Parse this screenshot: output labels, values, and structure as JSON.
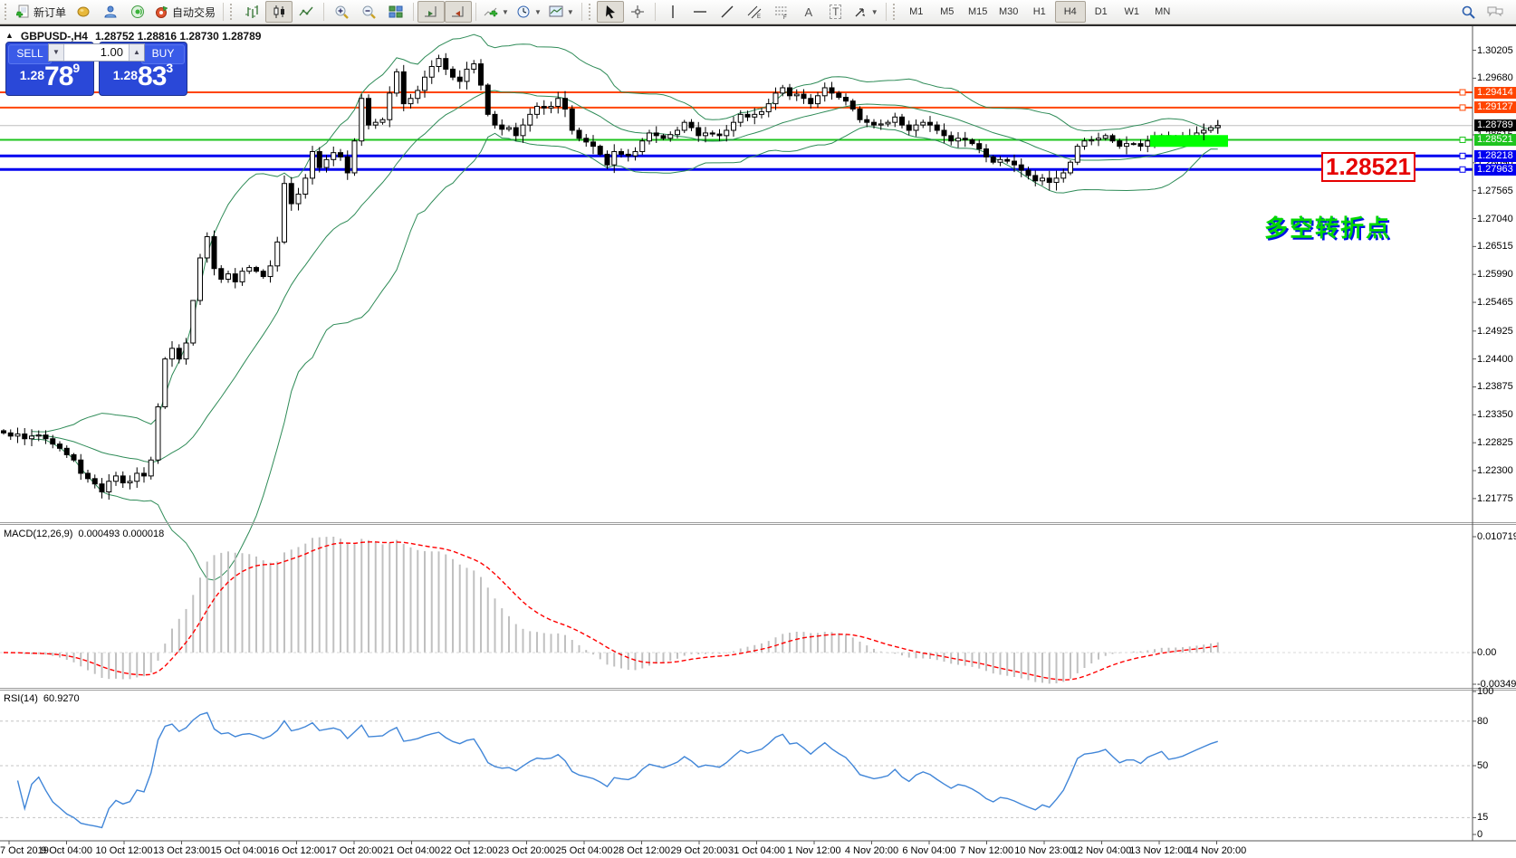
{
  "toolbar": {
    "new_order_label": "新订单",
    "autotrading_label": "自动交易",
    "text_tool_label": "A",
    "textlabel_tool_label": "T",
    "timeframes": [
      "M1",
      "M5",
      "M15",
      "M30",
      "H1",
      "H4",
      "D1",
      "W1",
      "MN"
    ],
    "active_timeframe": "H4"
  },
  "header": {
    "collapse_arrow": "▲",
    "symbol": "GBPUSD-,H4",
    "ohlc": "1.28752 1.28816 1.28730 1.28789"
  },
  "one_click": {
    "sell_label": "SELL",
    "buy_label": "BUY",
    "volume": "1.00",
    "sell_price_small": "1.28",
    "sell_price_big": "78",
    "sell_price_sup": "9",
    "buy_price_small": "1.28",
    "buy_price_big": "83",
    "buy_price_sup": "3"
  },
  "price_axis": {
    "ticks": [
      {
        "text": "1.30205",
        "price": 1.30205
      },
      {
        "text": "1.29680",
        "price": 1.2968
      },
      {
        "text": "1.28615",
        "price": 1.28615
      },
      {
        "text": "1.28090",
        "price": 1.2809
      },
      {
        "text": "1.27565",
        "price": 1.27565
      },
      {
        "text": "1.27040",
        "price": 1.2704
      },
      {
        "text": "1.26515",
        "price": 1.26515
      },
      {
        "text": "1.25990",
        "price": 1.2599
      },
      {
        "text": "1.25465",
        "price": 1.25465
      },
      {
        "text": "1.24925",
        "price": 1.24925
      },
      {
        "text": "1.24400",
        "price": 1.244
      },
      {
        "text": "1.23875",
        "price": 1.23875
      },
      {
        "text": "1.23350",
        "price": 1.2335
      },
      {
        "text": "1.22825",
        "price": 1.22825
      },
      {
        "text": "1.22300",
        "price": 1.223
      },
      {
        "text": "1.21775",
        "price": 1.21775
      }
    ],
    "tags": [
      {
        "text": "1.29414",
        "price": 1.29414,
        "bg": "#ff4500"
      },
      {
        "text": "1.29127",
        "price": 1.29127,
        "bg": "#ff4500"
      },
      {
        "text": "1.28789",
        "price": 1.28789,
        "bg": "#000000"
      },
      {
        "text": "1.28521",
        "price": 1.28521,
        "bg": "#1ec41e"
      },
      {
        "text": "1.28218",
        "price": 1.28218,
        "bg": "#0000f0"
      },
      {
        "text": "1.27963",
        "price": 1.27963,
        "bg": "#0000f0"
      }
    ]
  },
  "hlines": [
    {
      "price": 1.29414,
      "color": "#ff4500",
      "width": 2
    },
    {
      "price": 1.29127,
      "color": "#ff4500",
      "width": 2
    },
    {
      "price": 1.28521,
      "color": "#1ec41e",
      "width": 2
    },
    {
      "price": 1.28218,
      "color": "#0000f0",
      "width": 3
    },
    {
      "price": 1.27963,
      "color": "#0000f0",
      "width": 3
    }
  ],
  "bid_line": {
    "price": 1.28789,
    "color": "#bebebe"
  },
  "annotations": {
    "price_box_text": "1.28521",
    "pivot_text": "多空转折点",
    "highlight_rect_color": "#00ff00"
  },
  "indicators": {
    "macd": {
      "label": "MACD(12,26,9)",
      "values": "0.000493 0.000018",
      "axis": [
        {
          "text": "0.010719",
          "pos": "top"
        },
        {
          "text": "0.00",
          "pos": "zero"
        },
        {
          "text": "-0.003492",
          "pos": "bottom"
        }
      ]
    },
    "rsi": {
      "label": "RSI(14)",
      "value": "60.9270",
      "axis": [
        {
          "text": "100",
          "v": 100
        },
        {
          "text": "80",
          "v": 80
        },
        {
          "text": "50",
          "v": 50
        },
        {
          "text": "15",
          "v": 15
        },
        {
          "text": "0",
          "v": 0
        }
      ],
      "levels": [
        80,
        50,
        15
      ]
    }
  },
  "time_axis": {
    "labels": [
      "7 Oct 2019",
      "9 Oct 04:00",
      "10 Oct 12:00",
      "13 Oct 23:00",
      "15 Oct 04:00",
      "16 Oct 12:00",
      "17 Oct 20:00",
      "21 Oct 04:00",
      "22 Oct 12:00",
      "23 Oct 20:00",
      "25 Oct 04:00",
      "28 Oct 12:00",
      "29 Oct 20:00",
      "31 Oct 04:00",
      "1 Nov 12:00",
      "4 Nov 20:00",
      "6 Nov 04:00",
      "7 Nov 12:00",
      "10 Nov 23:00",
      "12 Nov 04:00",
      "13 Nov 12:00",
      "14 Nov 20:00"
    ]
  },
  "chart_data": {
    "type": "candlestick",
    "symbol": "GBPUSD",
    "timeframe": "H4",
    "first_open": 1.2305,
    "price_top": 1.3064,
    "price_bottom": 1.2133,
    "closes": [
      1.2301,
      1.2295,
      1.2299,
      1.229,
      1.2295,
      1.2297,
      1.229,
      1.228,
      1.2272,
      1.226,
      1.225,
      1.2225,
      1.2215,
      1.2205,
      1.219,
      1.221,
      1.222,
      1.2207,
      1.221,
      1.2225,
      1.222,
      1.225,
      1.235,
      1.244,
      1.246,
      1.244,
      1.247,
      1.255,
      1.263,
      1.267,
      1.261,
      1.259,
      1.26,
      1.2585,
      1.2605,
      1.2612,
      1.2605,
      1.2595,
      1.2615,
      1.266,
      1.277,
      1.2732,
      1.275,
      1.278,
      1.283,
      1.28,
      1.2815,
      1.2828,
      1.282,
      1.279,
      1.285,
      1.293,
      1.288,
      1.2885,
      1.289,
      1.294,
      1.298,
      1.292,
      1.293,
      1.2945,
      1.297,
      1.299,
      1.3005,
      1.2985,
      1.297,
      1.2962,
      1.2985,
      1.2995,
      1.2955,
      1.29,
      1.288,
      1.2872,
      1.2875,
      1.286,
      1.288,
      1.29,
      1.2915,
      1.2912,
      1.2915,
      1.293,
      1.291,
      1.287,
      1.2855,
      1.2848,
      1.284,
      1.2825,
      1.2805,
      1.283,
      1.2825,
      1.2822,
      1.283,
      1.285,
      1.2865,
      1.286,
      1.2855,
      1.2862,
      1.287,
      1.2885,
      1.2875,
      1.286,
      1.2865,
      1.2863,
      1.286,
      1.287,
      1.2885,
      1.29,
      1.2895,
      1.29,
      1.2905,
      1.292,
      1.294,
      1.295,
      1.2935,
      1.2938,
      1.293,
      1.292,
      1.2935,
      1.295,
      1.294,
      1.2932,
      1.2925,
      1.291,
      1.289,
      1.2885,
      1.288,
      1.2882,
      1.2885,
      1.2895,
      1.288,
      1.287,
      1.288,
      1.2885,
      1.288,
      1.287,
      1.286,
      1.285,
      1.2855,
      1.2852,
      1.2845,
      1.2835,
      1.282,
      1.281,
      1.2815,
      1.2812,
      1.2805,
      1.2795,
      1.2785,
      1.2775,
      1.278,
      1.2772,
      1.278,
      1.279,
      1.281,
      1.284,
      1.285,
      1.2852,
      1.2855,
      1.286,
      1.285,
      1.284,
      1.2845,
      1.2845,
      1.284,
      1.285,
      1.2855,
      1.286,
      1.285,
      1.2852,
      1.2855,
      1.286,
      1.2865,
      1.287,
      1.2875,
      1.28789
    ],
    "high_overrides": {
      "62": 1.3012,
      "27": 1.2475,
      "40": 1.2785
    },
    "bollinger": {
      "period": 20,
      "deviation": 2
    },
    "macd_params": [
      12,
      26,
      9
    ],
    "rsi_period": 14
  }
}
